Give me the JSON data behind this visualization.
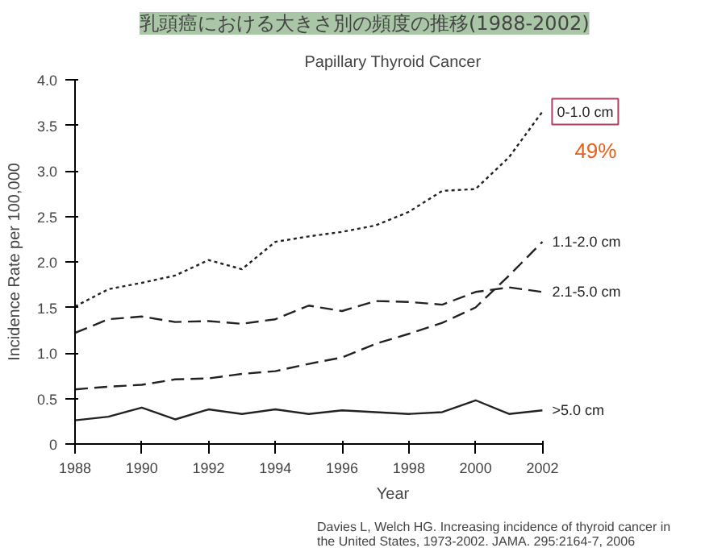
{
  "chart_data": {
    "type": "line",
    "title": "乳頭癌における大きさ別の頻度の推移(1988-2002)",
    "subtitle": "Papillary Thyroid Cancer",
    "xlabel": "Year",
    "ylabel": "Incidence Rate per 100,000",
    "x": [
      1988,
      1989,
      1990,
      1991,
      1992,
      1993,
      1994,
      1995,
      1996,
      1997,
      1998,
      1999,
      2000,
      2001,
      2002
    ],
    "series": [
      {
        "name": "0-1.0 cm",
        "color": "#222222",
        "line_style": "dotted",
        "values": [
          1.51,
          1.7,
          1.77,
          1.85,
          2.02,
          1.92,
          2.22,
          2.28,
          2.33,
          2.4,
          2.55,
          2.78,
          2.8,
          3.15,
          3.65
        ]
      },
      {
        "name": "1.1-2.0 cm",
        "color": "#222222",
        "line_style": "dashed",
        "values": [
          0.6,
          0.63,
          0.65,
          0.71,
          0.72,
          0.77,
          0.8,
          0.88,
          0.95,
          1.1,
          1.21,
          1.33,
          1.5,
          1.85,
          2.22
        ]
      },
      {
        "name": "2.1-5.0 cm",
        "color": "#222222",
        "line_style": "dashed",
        "values": [
          1.22,
          1.37,
          1.4,
          1.34,
          1.35,
          1.32,
          1.37,
          1.52,
          1.46,
          1.57,
          1.56,
          1.53,
          1.67,
          1.72,
          1.67
        ]
      },
      {
        "name": ">5.0 cm",
        "color": "#222222",
        "line_style": "solid",
        "values": [
          0.26,
          0.3,
          0.4,
          0.27,
          0.38,
          0.33,
          0.38,
          0.33,
          0.37,
          0.35,
          0.33,
          0.35,
          0.48,
          0.33,
          0.37
        ]
      }
    ],
    "xlim": [
      1988,
      2002
    ],
    "xticks": [
      1988,
      1990,
      1992,
      1994,
      1996,
      1998,
      2000,
      2002
    ],
    "ylim": [
      0,
      4.0
    ],
    "yticks": [
      0,
      {
        "value": 0.5,
        "label": "0.5"
      },
      {
        "value": 1,
        "label": "1.0"
      },
      {
        "value": 1.5,
        "label": "1.5"
      },
      {
        "value": 2,
        "label": "2.0"
      },
      {
        "value": 2.5,
        "label": "2.5"
      },
      {
        "value": 3,
        "label": "3.0"
      },
      {
        "value": 3.5,
        "label": "3.5"
      },
      {
        "value": 4,
        "label": "4.0"
      }
    ],
    "grid": false,
    "marker": "none",
    "annotations": [
      "49%",
      "Davies L, Welch HG. Increasing incidence of thyroid cancer in\nthe United States, 1973-2002. JAMA. 295:2164-7, 2006"
    ]
  }
}
